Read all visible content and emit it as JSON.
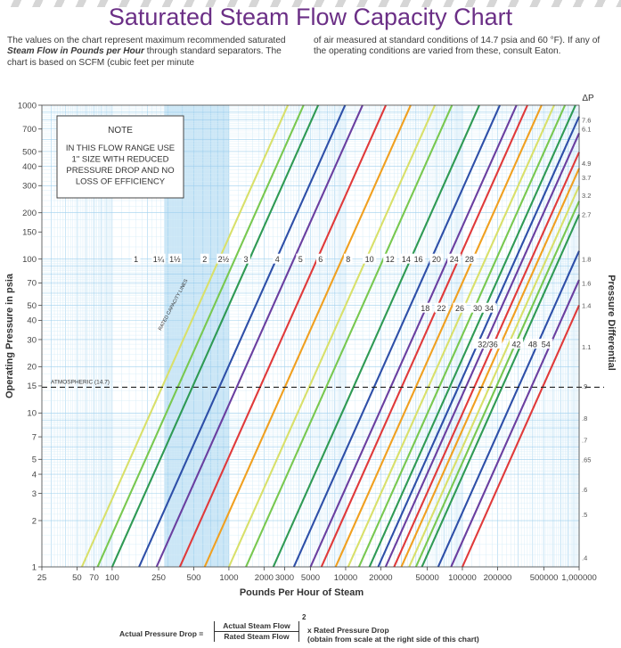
{
  "title": "Saturated Steam Flow Capacity Chart",
  "intro": {
    "left_parts": [
      "The values on the chart represent maximum recommended saturated ",
      "Steam Flow in Pounds per Hour",
      " through standard separators. The chart is based on SCFM (cubic feet per minute"
    ],
    "right": "of air measured at standard conditions of 14.7 psia and 60 °F). If any of the operating conditions are varied from these, consult Eaton."
  },
  "note": {
    "title": "NOTE",
    "lines": [
      "IN THIS FLOW RANGE USE",
      "1\" SIZE WITH REDUCED",
      "PRESSURE DROP AND NO",
      "LOSS OF EFFICIENCY"
    ]
  },
  "chart_data": {
    "type": "line",
    "title": "Saturated Steam Flow Capacity Chart",
    "xlabel": "Pounds Per Hour of Steam",
    "ylabel": "Operating Pressure in psia",
    "y2label": "Pressure Differential",
    "x_scale": "log",
    "y_scale": "log",
    "xlim": [
      25,
      1000000
    ],
    "ylim": [
      1,
      1000
    ],
    "x_ticks": [
      25,
      50,
      70,
      100,
      250,
      500,
      1000,
      2000,
      3000,
      5000,
      10000,
      20000,
      50000,
      100000,
      200000,
      500000,
      1000000
    ],
    "x_tick_labels": [
      "25",
      "50",
      "70",
      "100",
      "250",
      "500",
      "1000",
      "2000",
      "3000",
      "5000",
      "10000",
      "20000",
      "50000",
      "100000",
      "200000",
      "500000",
      "1,000000"
    ],
    "y_ticks": [
      1,
      2,
      3,
      4,
      5,
      7,
      10,
      15,
      20,
      30,
      40,
      50,
      70,
      100,
      150,
      200,
      300,
      400,
      500,
      700,
      1000
    ],
    "y_tick_labels": [
      "1",
      "2",
      "3",
      "4",
      "5",
      "7",
      "10",
      "15",
      "20",
      "30",
      "40",
      "50",
      "70",
      "100",
      "150",
      "200",
      "300",
      "400",
      "500",
      "700",
      "1000"
    ],
    "delta_p_header": "ΔP",
    "delta_p_scale": [
      {
        "value": "7.6",
        "at_psia": 800
      },
      {
        "value": "6.1",
        "at_psia": 700
      },
      {
        "value": "4.9",
        "at_psia": 420
      },
      {
        "value": "3.7",
        "at_psia": 340
      },
      {
        "value": "3.2",
        "at_psia": 260
      },
      {
        "value": "2.7",
        "at_psia": 195
      },
      {
        "value": "1.8",
        "at_psia": 100
      },
      {
        "value": "1.6",
        "at_psia": 70
      },
      {
        "value": "1.4",
        "at_psia": 50
      },
      {
        "value": "1.1",
        "at_psia": 27
      },
      {
        "value": ".9",
        "at_psia": 15
      },
      {
        "value": ".8",
        "at_psia": 9.3
      },
      {
        "value": ".7",
        "at_psia": 6.7
      },
      {
        "value": ".65",
        "at_psia": 5
      },
      {
        "value": ".6",
        "at_psia": 3.2
      },
      {
        "value": ".5",
        "at_psia": 2.2
      },
      {
        "value": ".4",
        "at_psia": 1.15
      }
    ],
    "slope_log": 1.7,
    "series": [
      {
        "name": "1",
        "color": "#d8e06a",
        "flow_at_1psia": 55
      },
      {
        "name": "1 1/4",
        "color": "#78c850",
        "flow_at_1psia": 75
      },
      {
        "name": "1 1/2",
        "color": "#2f9a54",
        "flow_at_1psia": 100
      },
      {
        "name": "2",
        "color": "#2e4fa8",
        "flow_at_1psia": 170
      },
      {
        "name": "2 1/2",
        "color": "#6a3fa0",
        "flow_at_1psia": 240
      },
      {
        "name": "3",
        "color": "#e03a3a",
        "flow_at_1psia": 380
      },
      {
        "name": "4",
        "color": "#f0a020",
        "flow_at_1psia": 620
      },
      {
        "name": "5",
        "color": "#d8e06a",
        "flow_at_1psia": 1000
      },
      {
        "name": "6",
        "color": "#78c850",
        "flow_at_1psia": 1400
      },
      {
        "name": "8",
        "color": "#2f9a54",
        "flow_at_1psia": 2400
      },
      {
        "name": "10",
        "color": "#2e4fa8",
        "flow_at_1psia": 3600
      },
      {
        "name": "12",
        "color": "#6a3fa0",
        "flow_at_1psia": 5000
      },
      {
        "name": "14",
        "color": "#e03a3a",
        "flow_at_1psia": 6200
      },
      {
        "name": "16",
        "color": "#f0a020",
        "flow_at_1psia": 8200
      },
      {
        "name": "18",
        "color": "#d8e06a",
        "flow_at_1psia": 10500
      },
      {
        "name": "20",
        "color": "#78c850",
        "flow_at_1psia": 13000
      },
      {
        "name": "22",
        "color": "#2f9a54",
        "flow_at_1psia": 16000
      },
      {
        "name": "24",
        "color": "#2e4fa8",
        "flow_at_1psia": 19000
      },
      {
        "name": "26",
        "color": "#6a3fa0",
        "flow_at_1psia": 22000
      },
      {
        "name": "28",
        "color": "#e03a3a",
        "flow_at_1psia": 26000
      },
      {
        "name": "30",
        "color": "#f0a020",
        "flow_at_1psia": 30000
      },
      {
        "name": "32",
        "color": "#d8e06a",
        "flow_at_1psia": 35000
      },
      {
        "name": "34",
        "color": "#78c850",
        "flow_at_1psia": 40000
      },
      {
        "name": "36",
        "color": "#2f9a54",
        "flow_at_1psia": 45000
      },
      {
        "name": "42",
        "color": "#2e4fa8",
        "flow_at_1psia": 62000
      },
      {
        "name": "48",
        "color": "#6a3fa0",
        "flow_at_1psia": 80000
      },
      {
        "name": "54",
        "color": "#e03a3a",
        "flow_at_1psia": 100000
      }
    ],
    "line_labels": [
      {
        "text": "1",
        "x": 160,
        "y": 100
      },
      {
        "text": "1¼",
        "x": 250,
        "y": 100
      },
      {
        "text": "1½",
        "x": 345,
        "y": 100
      },
      {
        "text": "2",
        "x": 620,
        "y": 100
      },
      {
        "text": "2½",
        "x": 900,
        "y": 100
      },
      {
        "text": "3",
        "x": 1400,
        "y": 100
      },
      {
        "text": "4",
        "x": 2600,
        "y": 100
      },
      {
        "text": "5",
        "x": 4100,
        "y": 100
      },
      {
        "text": "6",
        "x": 6100,
        "y": 100
      },
      {
        "text": "8",
        "x": 10500,
        "y": 100
      },
      {
        "text": "10",
        "x": 16000,
        "y": 100
      },
      {
        "text": "12",
        "x": 24000,
        "y": 100
      },
      {
        "text": "14",
        "x": 33000,
        "y": 100
      },
      {
        "text": "16",
        "x": 42000,
        "y": 100
      },
      {
        "text": "20",
        "x": 60000,
        "y": 100
      },
      {
        "text": "24",
        "x": 85000,
        "y": 100
      },
      {
        "text": "28",
        "x": 115000,
        "y": 100
      },
      {
        "text": "18",
        "x": 48000,
        "y": 48
      },
      {
        "text": "22",
        "x": 66000,
        "y": 48
      },
      {
        "text": "26",
        "x": 95000,
        "y": 48
      },
      {
        "text": "30",
        "x": 135000,
        "y": 48
      },
      {
        "text": "34",
        "x": 170000,
        "y": 48
      },
      {
        "text": "32/36",
        "x": 165000,
        "y": 28
      },
      {
        "text": "42",
        "x": 290000,
        "y": 28
      },
      {
        "text": "48",
        "x": 400000,
        "y": 28
      },
      {
        "text": "54",
        "x": 520000,
        "y": 28
      }
    ],
    "reference_line": {
      "label": "ATMOSPHERIC (14.7)",
      "y": 14.7
    },
    "rated_capacity_band": {
      "label": "RATED CAPACITY LINES",
      "x_from": 280,
      "x_to": 1000
    }
  },
  "formula": {
    "left": "Actual Pressure Drop =",
    "numerator": "Actual Steam Flow",
    "denominator": "Rated Steam Flow",
    "exponent": "2",
    "right_line1": "x Rated Pressure Drop",
    "right_line2": "(obtain from scale at the right side of this chart)"
  }
}
